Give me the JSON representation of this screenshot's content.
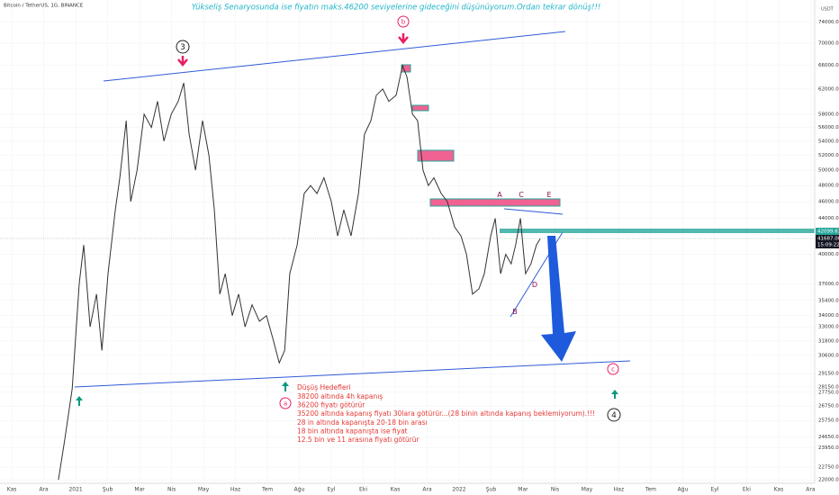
{
  "chart_data": {
    "type": "line",
    "header": "Bitcoin / TetherUS, 1G, BINANCE",
    "title": "Yükseliş Senaryosunda ise fiyatın maks.46200 seviyelerine gideceğini düşünüyorum.Ordan tekrar dönüş!!!",
    "currency": "USDT",
    "log_scale": true,
    "grid": true,
    "x": [
      1.46,
      1.66,
      1.89,
      2.11,
      2.25,
      2.45,
      2.65,
      2.82,
      3.01,
      3.24,
      3.38,
      3.58,
      3.72,
      3.92,
      4.14,
      4.37,
      4.56,
      4.76,
      4.99,
      5.21,
      5.38,
      5.55,
      5.75,
      5.97,
      6.17,
      6.34,
      6.51,
      6.68,
      6.9,
      7.1,
      7.3,
      7.52,
      7.75,
      7.97,
      8.17,
      8.37,
      8.54,
      8.7,
      8.93,
      9.15,
      9.35,
      9.55,
      9.77,
      10.0,
      10.2,
      10.39,
      10.62,
      10.85,
      11.04,
      11.24,
      11.41,
      11.61,
      11.8,
      12.03,
      12.23,
      12.37,
      12.54,
      12.7,
      12.87,
      13.04,
      13.21,
      13.44,
      13.63,
      13.86,
      14.06,
      14.23,
      14.42,
      14.62,
      14.79,
      14.99,
      15.13,
      15.3,
      15.46,
      15.63,
      15.77,
      15.92,
      16.08,
      16.25,
      16.42,
      16.54
    ],
    "series": [
      {
        "name": "BTCUSDT",
        "color": "#333333",
        "values": [
          22000,
          24500,
          28000,
          37000,
          41000,
          33000,
          36000,
          31000,
          38000,
          45000,
          49000,
          57000,
          46000,
          50000,
          58000,
          56000,
          60000,
          54000,
          58000,
          60000,
          63000,
          55000,
          50000,
          57000,
          52000,
          45000,
          36000,
          38000,
          34000,
          36000,
          33000,
          35000,
          33500,
          34000,
          32000,
          30000,
          31000,
          38000,
          41000,
          47000,
          48000,
          47000,
          49000,
          46000,
          42000,
          45000,
          42000,
          47000,
          55000,
          57000,
          61000,
          62000,
          60000,
          61000,
          66000,
          64000,
          58000,
          57000,
          50000,
          48000,
          49000,
          47000,
          46000,
          43000,
          42000,
          40000,
          36000,
          36500,
          38000,
          42000,
          44000,
          38000,
          40000,
          39000,
          41000,
          44000,
          38000,
          39000,
          41000,
          41687
        ]
      }
    ],
    "xlim": [
      -0.37,
      25.13
    ],
    "xticks": [
      {
        "value": 0,
        "label": "Kas"
      },
      {
        "value": 1,
        "label": "Ara"
      },
      {
        "value": 2,
        "label": "2021"
      },
      {
        "value": 3,
        "label": "Şub"
      },
      {
        "value": 4,
        "label": "Mar"
      },
      {
        "value": 5,
        "label": "Nis"
      },
      {
        "value": 6,
        "label": "May"
      },
      {
        "value": 7,
        "label": "Haz"
      },
      {
        "value": 8,
        "label": "Tem"
      },
      {
        "value": 9,
        "label": "Ağu"
      },
      {
        "value": 10,
        "label": "Eyl"
      },
      {
        "value": 11,
        "label": "Eki"
      },
      {
        "value": 12,
        "label": "Kas"
      },
      {
        "value": 13,
        "label": "Ara"
      },
      {
        "value": 14,
        "label": "2022"
      },
      {
        "value": 15,
        "label": "Şub"
      },
      {
        "value": 16,
        "label": "Mar"
      },
      {
        "value": 17,
        "label": "Nis"
      },
      {
        "value": 18,
        "label": "May"
      },
      {
        "value": 19,
        "label": "Haz"
      },
      {
        "value": 20,
        "label": "Tem"
      },
      {
        "value": 21,
        "label": "Ağu"
      },
      {
        "value": 22,
        "label": "Eyl"
      },
      {
        "value": 23,
        "label": "Eki"
      },
      {
        "value": 24,
        "label": "Kas"
      },
      {
        "value": 25,
        "label": "Ara"
      }
    ],
    "ylim": [
      21800,
      78500
    ],
    "yticks": [
      {
        "value": 74000,
        "label": "74000.00"
      },
      {
        "value": 70000,
        "label": "70000.00"
      },
      {
        "value": 66000,
        "label": "66000.00"
      },
      {
        "value": 62000,
        "label": "62000.00"
      },
      {
        "value": 58000,
        "label": "58000.00"
      },
      {
        "value": 56000,
        "label": "56000.00"
      },
      {
        "value": 54000,
        "label": "54000.00"
      },
      {
        "value": 52000,
        "label": "52000.00"
      },
      {
        "value": 50000,
        "label": "50000.00"
      },
      {
        "value": 48000,
        "label": "48000.00"
      },
      {
        "value": 46000,
        "label": "46000.00"
      },
      {
        "value": 44000,
        "label": "44000.00"
      },
      {
        "value": 40000,
        "label": "40000.00"
      },
      {
        "value": 37000,
        "label": "37000.00"
      },
      {
        "value": 35400,
        "label": "35400.00"
      },
      {
        "value": 34000,
        "label": "34000.00"
      },
      {
        "value": 33000,
        "label": "33000.00"
      },
      {
        "value": 31800,
        "label": "31800.00"
      },
      {
        "value": 30600,
        "label": "30600.00"
      },
      {
        "value": 29150,
        "label": "29150.00"
      },
      {
        "value": 28150,
        "label": "28150.00"
      },
      {
        "value": 27750,
        "label": "27750.00"
      },
      {
        "value": 26750,
        "label": "26750.00"
      },
      {
        "value": 25750,
        "label": "25750.00"
      },
      {
        "value": 24650,
        "label": "24650.00"
      },
      {
        "value": 23950,
        "label": "23950.00"
      },
      {
        "value": 22750,
        "label": "22750.00"
      },
      {
        "value": 22000,
        "label": "22000.00"
      }
    ],
    "price_labels": [
      "42099.61",
      "41687.00",
      "15:09:22"
    ],
    "wave_labels": [
      "3",
      "b",
      "A",
      "C",
      "E",
      "B",
      "D",
      "a",
      "c",
      "4"
    ],
    "targets_title": "Düşüş Hedefleri",
    "targets": [
      "38200 altında 4h kapanış",
      "36200 fiyatı götürür",
      "35200 altında kapanış fiyatı 30lara götürür...(28 binin altında kapanış beklemiyorum).!!!",
      "28 in altında kapanışta 20-18 bin arası",
      "18 bin altında kapanışta ise fiyat",
      "12.5 bin ve 11 arasına fiyatı götürür"
    ]
  }
}
